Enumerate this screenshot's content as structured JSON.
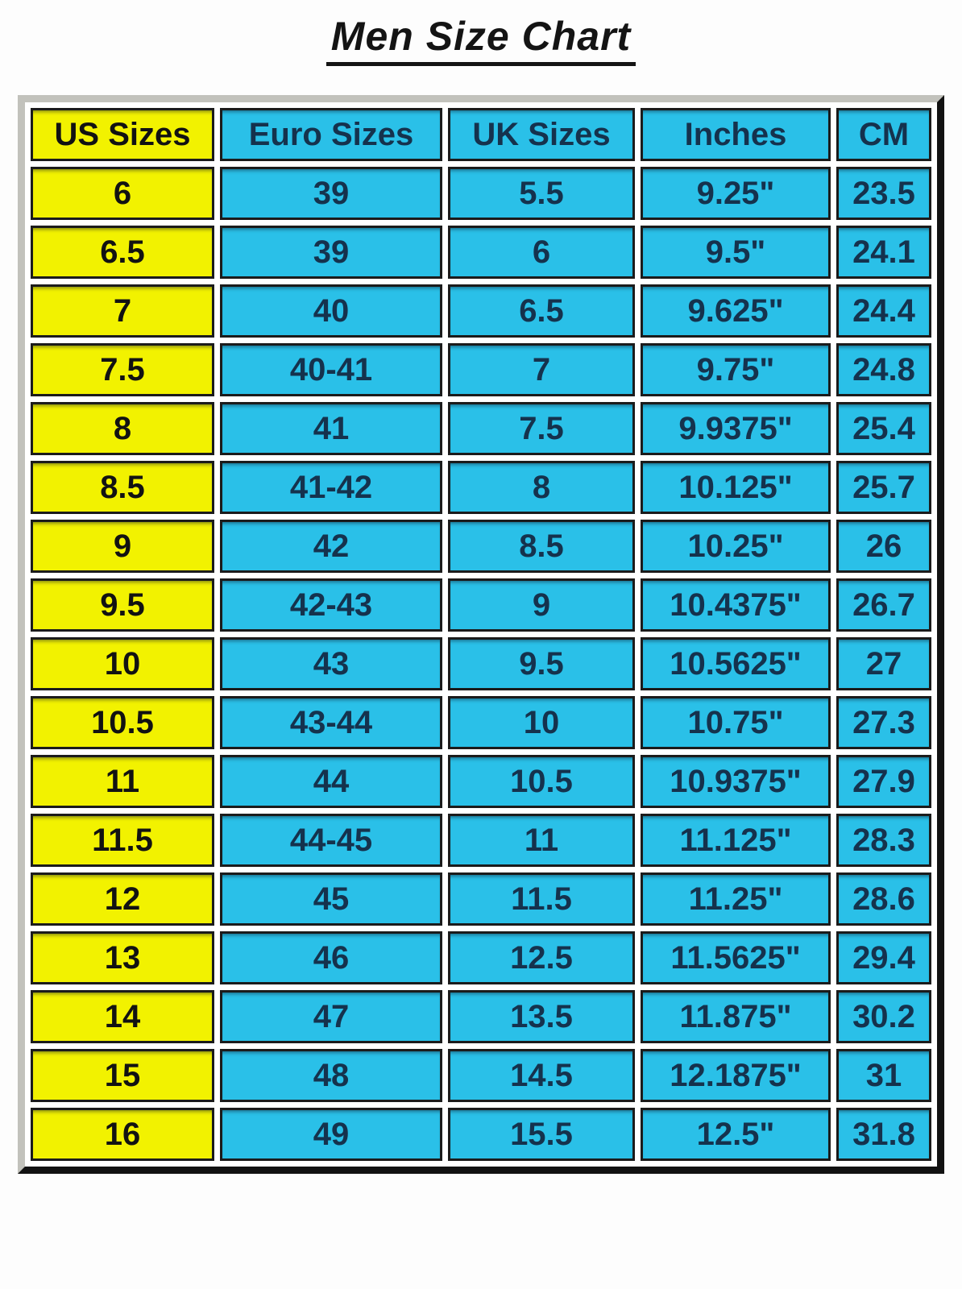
{
  "title": "Men Size Chart",
  "colors": {
    "yellow_cell": "#f2f200",
    "cyan_cell": "#2ac0e8",
    "text_on_cyan": "#15324d",
    "text_on_yellow": "#121212",
    "frame_light": "#c2c2bc",
    "frame_dark": "#121212",
    "cell_border": "#1b1b1b",
    "page_background": "#ffffff"
  },
  "chart_data": {
    "type": "table",
    "title": "Men Size Chart",
    "columns": [
      "US Sizes",
      "Euro Sizes",
      "UK Sizes",
      "Inches",
      "CM"
    ],
    "rows": [
      [
        "6",
        "39",
        "5.5",
        "9.25\"",
        "23.5"
      ],
      [
        "6.5",
        "39",
        "6",
        "9.5\"",
        "24.1"
      ],
      [
        "7",
        "40",
        "6.5",
        "9.625\"",
        "24.4"
      ],
      [
        "7.5",
        "40-41",
        "7",
        "9.75\"",
        "24.8"
      ],
      [
        "8",
        "41",
        "7.5",
        "9.9375\"",
        "25.4"
      ],
      [
        "8.5",
        "41-42",
        "8",
        "10.125\"",
        "25.7"
      ],
      [
        "9",
        "42",
        "8.5",
        "10.25\"",
        "26"
      ],
      [
        "9.5",
        "42-43",
        "9",
        "10.4375\"",
        "26.7"
      ],
      [
        "10",
        "43",
        "9.5",
        "10.5625\"",
        "27"
      ],
      [
        "10.5",
        "43-44",
        "10",
        "10.75\"",
        "27.3"
      ],
      [
        "11",
        "44",
        "10.5",
        "10.9375\"",
        "27.9"
      ],
      [
        "11.5",
        "44-45",
        "11",
        "11.125\"",
        "28.3"
      ],
      [
        "12",
        "45",
        "11.5",
        "11.25\"",
        "28.6"
      ],
      [
        "13",
        "46",
        "12.5",
        "11.5625\"",
        "29.4"
      ],
      [
        "14",
        "47",
        "13.5",
        "11.875\"",
        "30.2"
      ],
      [
        "15",
        "48",
        "14.5",
        "12.1875\"",
        "31"
      ],
      [
        "16",
        "49",
        "15.5",
        "12.5\"",
        "31.8"
      ]
    ]
  }
}
